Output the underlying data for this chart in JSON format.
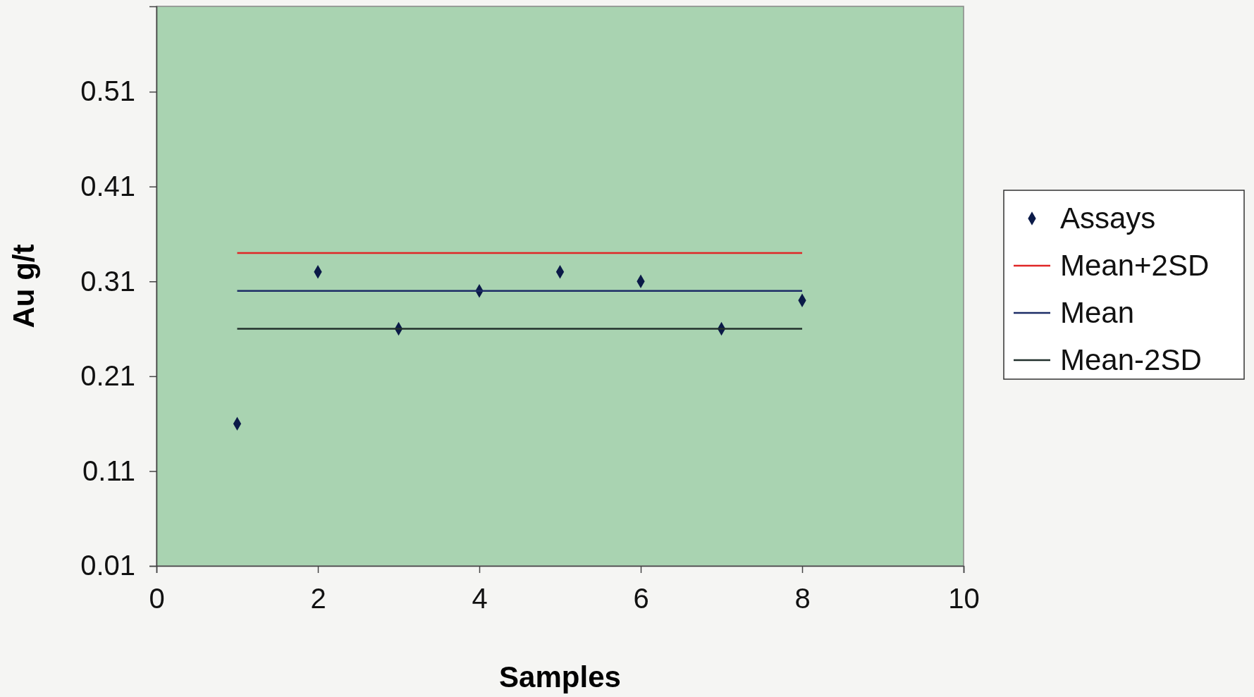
{
  "chart_data": {
    "type": "scatter",
    "xlabel": "Samples",
    "ylabel": "Au g/t",
    "x": [
      1,
      2,
      3,
      4,
      5,
      6,
      7,
      8
    ],
    "series": [
      {
        "name": "Assays",
        "type": "scatter",
        "color": "#0b1a48",
        "values": [
          0.16,
          0.32,
          0.26,
          0.3,
          0.32,
          0.31,
          0.26,
          0.29
        ]
      },
      {
        "name": "Mean+2SD",
        "type": "line",
        "marker": "none",
        "color": "#e02626",
        "values": [
          0.34,
          0.34,
          0.34,
          0.34,
          0.34,
          0.34,
          0.34,
          0.34
        ]
      },
      {
        "name": "Mean",
        "type": "line",
        "marker": "none",
        "color": "#1c2c66",
        "values": [
          0.3,
          0.3,
          0.3,
          0.3,
          0.3,
          0.3,
          0.3,
          0.3
        ]
      },
      {
        "name": "Mean-2SD",
        "type": "line",
        "marker": "none",
        "color": "#22302c",
        "values": [
          0.26,
          0.26,
          0.26,
          0.26,
          0.26,
          0.26,
          0.26,
          0.26
        ]
      }
    ],
    "xlim": [
      0,
      10
    ],
    "xticks": [
      0,
      2,
      4,
      6,
      8,
      10
    ],
    "ylim": [
      0.01,
      0.6
    ],
    "yticks": [
      0.01,
      0.11,
      0.21,
      0.31,
      0.41,
      0.51
    ],
    "marker": "diamond",
    "legend": "right",
    "grid": false
  }
}
